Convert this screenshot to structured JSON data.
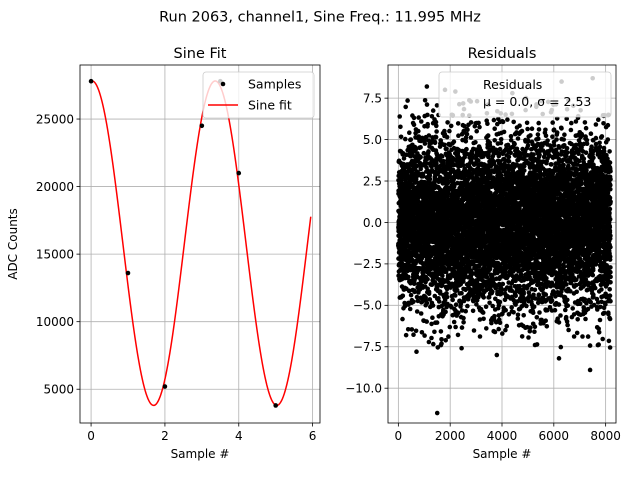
{
  "suptitle": "Run 2063, channel1, Sine Freq.: 11.995 MHz",
  "colors": {
    "fit": "#ff0000",
    "points": "#000000",
    "grid": "#b0b0b0"
  },
  "chart_data": [
    {
      "type": "line",
      "title": "Sine Fit",
      "xlabel": "Sample #",
      "ylabel": "ADC Counts",
      "xlim": [
        -0.3,
        6.2
      ],
      "ylim": [
        2500,
        29000
      ],
      "xticks": [
        0,
        2,
        4,
        6
      ],
      "xtick_labels": [
        "0",
        "2",
        "4",
        "6"
      ],
      "yticks": [
        5000,
        10000,
        15000,
        20000,
        25000
      ],
      "ytick_labels": [
        "5000",
        "10000",
        "15000",
        "20000",
        "25000"
      ],
      "grid": true,
      "legend": {
        "position": "top-right",
        "entries": [
          "Samples",
          "Sine fit"
        ]
      },
      "series": [
        {
          "name": "Samples",
          "kind": "scatter",
          "x": [
            0,
            1,
            2,
            3,
            3.5,
            4,
            5
          ],
          "y": [
            27800,
            13600,
            5200,
            24500,
            27800,
            21000,
            3800
          ]
        },
        {
          "name": "Sine fit",
          "kind": "line",
          "model": {
            "offset": 15810,
            "amplitude": 12010,
            "freq_per_sample": 0.29982,
            "phase_rad": 1.5217
          },
          "x_range": [
            0,
            5.95
          ]
        }
      ]
    },
    {
      "type": "scatter",
      "title": "Residuals",
      "xlabel": "Sample #",
      "ylabel": "",
      "xlim": [
        -400,
        8400
      ],
      "ylim": [
        -12.1,
        9.5
      ],
      "xticks": [
        0,
        2000,
        4000,
        6000,
        8000
      ],
      "xtick_labels": [
        "0",
        "2000",
        "4000",
        "6000",
        "8000"
      ],
      "yticks": [
        -10,
        -7.5,
        -5,
        -2.5,
        0,
        2.5,
        5,
        7.5
      ],
      "ytick_labels": [
        "−10.0",
        "−7.5",
        "−5.0",
        "−2.5",
        "0.0",
        "2.5",
        "5.0",
        "7.5"
      ],
      "grid": true,
      "legend": {
        "position": "top-right",
        "entries": [
          "Residuals"
        ],
        "stats_text": "μ = 0.0, σ = 2.53"
      },
      "series": [
        {
          "name": "Residuals",
          "distribution": {
            "n": 8192,
            "mean": 0.0,
            "std": 2.53
          },
          "outliers": [
            {
              "x": 1500,
              "y": -11.5
            },
            {
              "x": 7400,
              "y": -8.9
            },
            {
              "x": 1800,
              "y": 8.0
            },
            {
              "x": 1100,
              "y": 8.2
            },
            {
              "x": 7500,
              "y": 8.7
            },
            {
              "x": 6300,
              "y": 8.5
            },
            {
              "x": 2200,
              "y": 7.9
            },
            {
              "x": 3800,
              "y": -8.0
            },
            {
              "x": 700,
              "y": -7.8
            },
            {
              "x": 6200,
              "y": -8.2
            },
            {
              "x": 4400,
              "y": 7.8
            },
            {
              "x": 300,
              "y": -6.8
            }
          ]
        }
      ]
    }
  ]
}
